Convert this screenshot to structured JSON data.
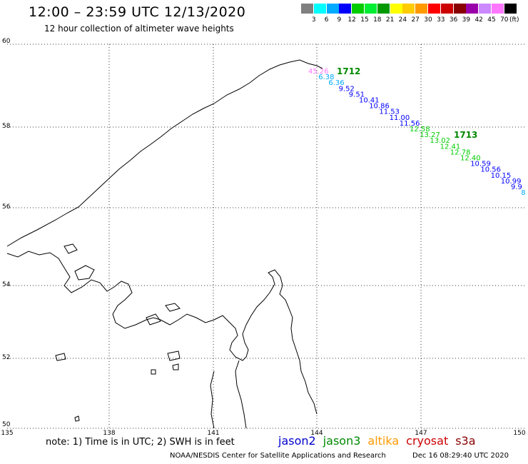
{
  "header": {
    "title": "12:00 – 23:59 UTC 12/13/2020",
    "subtitle": "12 hour collection of altimeter wave heights"
  },
  "scale": {
    "unit": "(ft)",
    "colors": [
      "#808080",
      "#00ffff",
      "#00aaff",
      "#0000ff",
      "#00cc00",
      "#00ee33",
      "#009900",
      "#ffff00",
      "#ffcc00",
      "#ff9900",
      "#ff0000",
      "#cc0000",
      "#880000",
      "#9900aa",
      "#cc88ff",
      "#ff77ff",
      "#000000"
    ],
    "labels": [
      "3",
      "6",
      "9",
      "12",
      "15",
      "18",
      "21",
      "24",
      "27",
      "30",
      "33",
      "36",
      "39",
      "42",
      "45",
      "70"
    ]
  },
  "axes": {
    "lat_labels": [
      "60",
      "58",
      "56",
      "54",
      "52",
      "50"
    ],
    "lon_labels": [
      "135",
      "138",
      "141",
      "144",
      "147",
      "150"
    ]
  },
  "passes": [
    {
      "label": "1712",
      "color": "#008800"
    },
    {
      "label": "1713",
      "color": "#008800"
    }
  ],
  "track_values": [
    "45.26",
    "6.38",
    "6.36",
    "9.52",
    "9.51",
    "10.41",
    "10.86",
    "11.53",
    "11.00",
    "11.56",
    "12.58",
    "13.27",
    "13.02",
    "12.41",
    "12.78",
    "12.40",
    "10.59",
    "10.56",
    "10.15",
    "10.99",
    "9.9",
    "8"
  ],
  "footer": {
    "note": "note: 1) Time is in UTC; 2) SWH is in feet",
    "satellites": [
      {
        "name": "jason2",
        "color": "#0000cc"
      },
      {
        "name": "jason3",
        "color": "#008800"
      },
      {
        "name": "altika",
        "color": "#ff9900"
      },
      {
        "name": "cryosat",
        "color": "#cc0000"
      },
      {
        "name": "s3a",
        "color": "#880000"
      }
    ],
    "credit": "NOAA/NESDIS Center for Satellite Applications and Research",
    "timestamp": "Dec 16 08:29:40 UTC 2020"
  }
}
